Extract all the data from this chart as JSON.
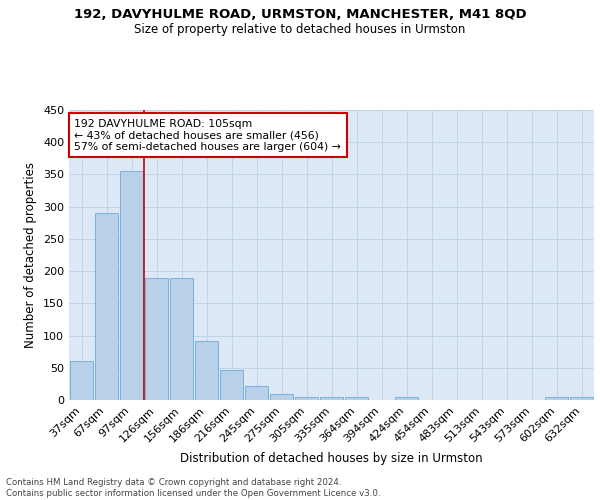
{
  "title1": "192, DAVYHULME ROAD, URMSTON, MANCHESTER, M41 8QD",
  "title2": "Size of property relative to detached houses in Urmston",
  "xlabel": "Distribution of detached houses by size in Urmston",
  "ylabel": "Number of detached properties",
  "categories": [
    "37sqm",
    "67sqm",
    "97sqm",
    "126sqm",
    "156sqm",
    "186sqm",
    "216sqm",
    "245sqm",
    "275sqm",
    "305sqm",
    "335sqm",
    "364sqm",
    "394sqm",
    "424sqm",
    "454sqm",
    "483sqm",
    "513sqm",
    "543sqm",
    "573sqm",
    "602sqm",
    "632sqm"
  ],
  "values": [
    60,
    290,
    356,
    190,
    190,
    92,
    46,
    21,
    9,
    5,
    5,
    5,
    0,
    5,
    0,
    0,
    0,
    0,
    0,
    5,
    5
  ],
  "bar_color": "#b8d0e8",
  "bar_edge_color": "#5a9fd4",
  "grid_color": "#c0d4e8",
  "bg_color": "#dce8f5",
  "annotation_text_line1": "192 DAVYHULME ROAD: 105sqm",
  "annotation_text_line2": "← 43% of detached houses are smaller (456)",
  "annotation_text_line3": "57% of semi-detached houses are larger (604) →",
  "red_line_x": 2.5,
  "ylim": [
    0,
    450
  ],
  "yticks": [
    0,
    50,
    100,
    150,
    200,
    250,
    300,
    350,
    400,
    450
  ],
  "footer": "Contains HM Land Registry data © Crown copyright and database right 2024.\nContains public sector information licensed under the Open Government Licence v3.0.",
  "annotation_box_color": "#ffffff",
  "annotation_box_edge": "#cc0000",
  "red_line_color": "#cc0000",
  "title1_fontsize": 9.5,
  "title2_fontsize": 8.5
}
